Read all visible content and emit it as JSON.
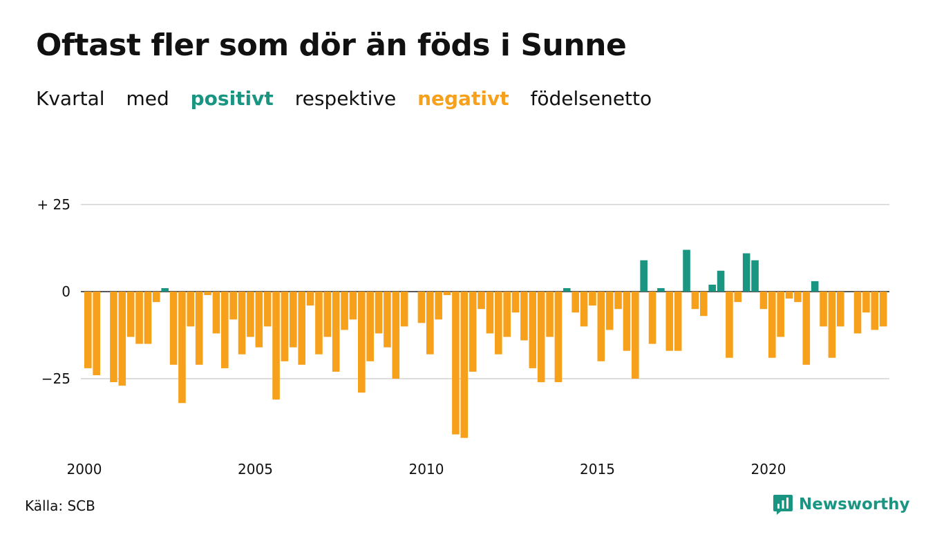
{
  "title": "Oftast fler som dör än föds i Sunne",
  "subtitle": {
    "part1": "Kvartal",
    "part2": "med",
    "positive": "positivt",
    "part3": "respektive",
    "negative": "negativt",
    "part4": "födelsenetto"
  },
  "source": "Källa: SCB",
  "brand": {
    "name": "Newsworthy",
    "icon": "bar-chart-speech-icon"
  },
  "colors": {
    "positive": "#1a9582",
    "negative": "#f7a01b",
    "grid": "#dddddd",
    "text": "#111111"
  },
  "chart_data": {
    "type": "bar",
    "x_start": "2000 Q1",
    "x_ticks": [
      "2000",
      "2005",
      "2010",
      "2015",
      "2020"
    ],
    "y_ticks": [
      {
        "value": 25,
        "label": "+ 25"
      },
      {
        "value": 0,
        "label": "0"
      },
      {
        "value": -25,
        "label": "−25"
      }
    ],
    "ylim": [
      -43,
      25
    ],
    "grid": true,
    "values": [
      -22,
      -24,
      0,
      -26,
      -27,
      -13,
      -15,
      -15,
      -3,
      1,
      -21,
      -32,
      -10,
      -21,
      -1,
      -12,
      -22,
      -8,
      -18,
      -13,
      -16,
      -10,
      -31,
      -20,
      -16,
      -21,
      -4,
      -18,
      -13,
      -23,
      -11,
      -8,
      -29,
      -20,
      -12,
      -16,
      -25,
      -10,
      0,
      -9,
      -18,
      -8,
      -1,
      -41,
      -42,
      -23,
      -5,
      -12,
      -18,
      -13,
      -6,
      -14,
      -22,
      -26,
      -13,
      -26,
      1,
      -6,
      -10,
      -4,
      -20,
      -11,
      -5,
      -17,
      -25,
      9,
      -15,
      1,
      -17,
      -17,
      12,
      -5,
      -7,
      2,
      6,
      -19,
      -3,
      11,
      9,
      -5,
      -19,
      -13,
      -2,
      -3,
      -21,
      3,
      -10,
      -19,
      -10,
      0,
      -12,
      -6,
      -11,
      -10
    ]
  }
}
